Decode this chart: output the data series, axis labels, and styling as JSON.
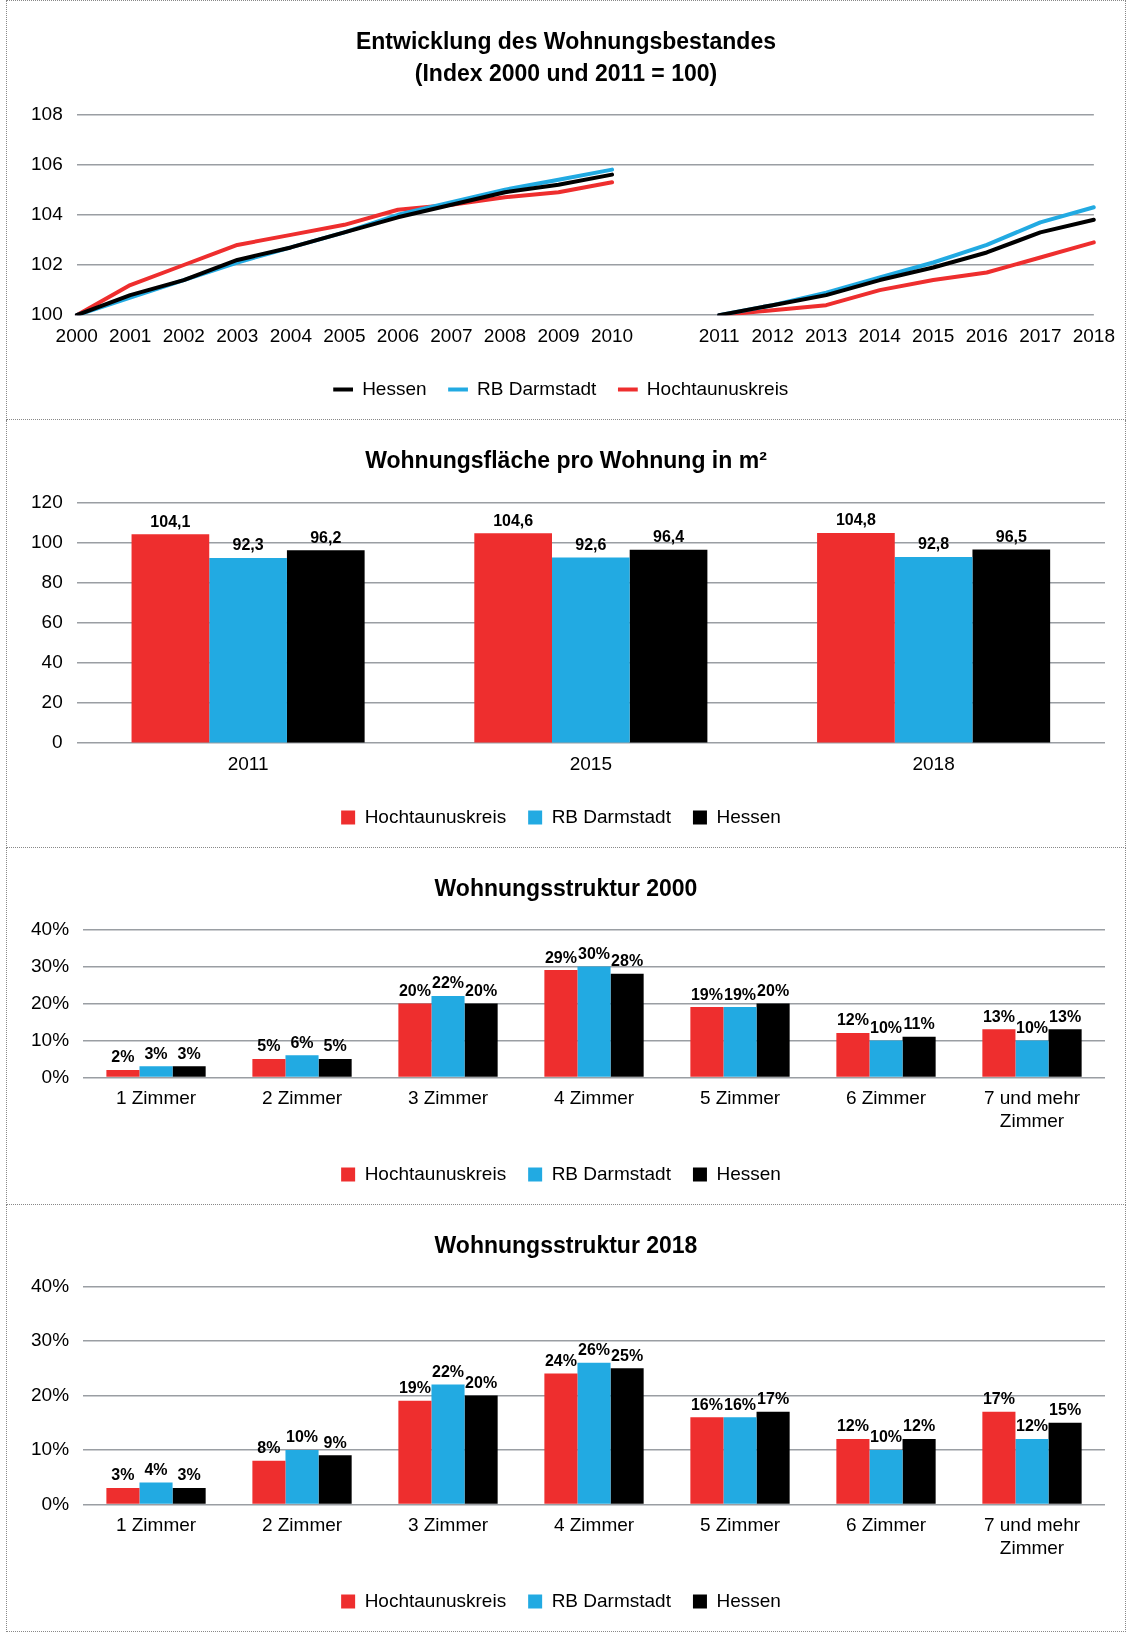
{
  "chart_data": [
    {
      "type": "line",
      "title": "Entwicklung des Wohnungsbestandes\n(Index 2000 und 2011 = 100)",
      "categories": [
        "2000",
        "2001",
        "2002",
        "2003",
        "2004",
        "2005",
        "2006",
        "2007",
        "2008",
        "2009",
        "2010",
        null,
        "2011",
        "2012",
        "2013",
        "2014",
        "2015",
        "2016",
        "2017",
        "2018"
      ],
      "series": [
        {
          "name": "Hochtaunuskreis",
          "color": "#ee2e2e",
          "values": [
            100,
            101.2,
            102.0,
            102.8,
            103.2,
            103.6,
            104.2,
            104.4,
            104.7,
            104.9,
            105.3,
            null,
            100,
            100.2,
            100.4,
            101.0,
            101.4,
            101.7,
            102.3,
            102.9
          ]
        },
        {
          "name": "RB Darmstadt",
          "color": "#22aae2",
          "values": [
            100,
            100.7,
            101.4,
            102.1,
            102.7,
            103.3,
            104.0,
            104.5,
            105.0,
            105.4,
            105.8,
            null,
            100,
            100.4,
            100.9,
            101.5,
            102.1,
            102.8,
            103.7,
            104.3
          ]
        },
        {
          "name": "Hessen",
          "color": "#000000",
          "values": [
            100,
            100.8,
            101.4,
            102.2,
            102.7,
            103.3,
            103.9,
            104.4,
            104.9,
            105.2,
            105.6,
            null,
            100,
            100.4,
            100.8,
            101.4,
            101.9,
            102.5,
            103.3,
            103.8
          ]
        }
      ],
      "ylim": [
        100,
        108
      ],
      "yticks": [
        100,
        102,
        104,
        106,
        108
      ],
      "grid": "y",
      "legend": "bottom",
      "marker": "none",
      "line_style": "solid"
    },
    {
      "type": "bar",
      "title": "Wohnungsfläche pro Wohnung in m²",
      "categories": [
        "2011",
        "2015",
        "2018"
      ],
      "series": [
        {
          "name": "Hochtaunuskreis",
          "color": "#ee2e2e",
          "values": [
            104.1,
            104.6,
            104.8
          ],
          "value_labels": [
            "104,1",
            "104,6",
            "104,8"
          ]
        },
        {
          "name": "RB Darmstadt",
          "color": "#22aae2",
          "values": [
            92.3,
            92.6,
            92.8
          ],
          "value_labels": [
            "92,3",
            "92,6",
            "92,8"
          ]
        },
        {
          "name": "Hessen",
          "color": "#000000",
          "values": [
            96.2,
            96.4,
            96.5
          ],
          "value_labels": [
            "96,2",
            "96,4",
            "96,5"
          ]
        }
      ],
      "ylim": [
        0,
        120
      ],
      "yticks": [
        0,
        20,
        40,
        60,
        80,
        100,
        120
      ],
      "grid": "y",
      "legend": "bottom"
    },
    {
      "type": "bar",
      "title": "Wohnungsstruktur 2000",
      "categories": [
        "1 Zimmer",
        "2 Zimmer",
        "3 Zimmer",
        "4 Zimmer",
        "5 Zimmer",
        "6 Zimmer",
        "7 und mehr Zimmer"
      ],
      "series": [
        {
          "name": "Hochtaunuskreis",
          "color": "#ee2e2e",
          "values": [
            2,
            5,
            20,
            29,
            19,
            12,
            13
          ],
          "value_labels": [
            "2%",
            "5%",
            "20%",
            "29%",
            "19%",
            "12%",
            "13%"
          ]
        },
        {
          "name": "RB Darmstadt",
          "color": "#22aae2",
          "values": [
            3,
            6,
            22,
            30,
            19,
            10,
            10
          ],
          "value_labels": [
            "3%",
            "6%",
            "22%",
            "30%",
            "19%",
            "10%",
            "10%"
          ]
        },
        {
          "name": "Hessen",
          "color": "#000000",
          "values": [
            3,
            5,
            20,
            28,
            20,
            11,
            13
          ],
          "value_labels": [
            "3%",
            "5%",
            "20%",
            "28%",
            "20%",
            "11%",
            "13%"
          ]
        }
      ],
      "ylim": [
        0,
        40
      ],
      "yticks": [
        {
          "value": 0,
          "label": "0%"
        },
        {
          "value": 10,
          "label": "10%"
        },
        {
          "value": 20,
          "label": "20%"
        },
        {
          "value": 30,
          "label": "30%"
        },
        {
          "value": 40,
          "label": "40%"
        }
      ],
      "grid": "y",
      "legend": "bottom"
    },
    {
      "type": "bar",
      "title": "Wohnungsstruktur 2018",
      "categories": [
        "1 Zimmer",
        "2 Zimmer",
        "3 Zimmer",
        "4 Zimmer",
        "5 Zimmer",
        "6 Zimmer",
        "7 und mehr Zimmer"
      ],
      "series": [
        {
          "name": "Hochtaunuskreis",
          "color": "#ee2e2e",
          "values": [
            3,
            8,
            19,
            24,
            16,
            12,
            17
          ],
          "value_labels": [
            "3%",
            "8%",
            "19%",
            "24%",
            "16%",
            "12%",
            "17%"
          ]
        },
        {
          "name": "RB Darmstadt",
          "color": "#22aae2",
          "values": [
            4,
            10,
            22,
            26,
            16,
            10,
            12
          ],
          "value_labels": [
            "4%",
            "10%",
            "22%",
            "26%",
            "16%",
            "10%",
            "12%"
          ]
        },
        {
          "name": "Hessen",
          "color": "#000000",
          "values": [
            3,
            9,
            20,
            25,
            17,
            12,
            15
          ],
          "value_labels": [
            "3%",
            "9%",
            "20%",
            "25%",
            "17%",
            "12%",
            "15%"
          ]
        }
      ],
      "ylim": [
        0,
        40
      ],
      "yticks": [
        {
          "value": 0,
          "label": "0%"
        },
        {
          "value": 10,
          "label": "10%"
        },
        {
          "value": 20,
          "label": "20%"
        },
        {
          "value": 30,
          "label": "30%"
        },
        {
          "value": 40,
          "label": "40%"
        }
      ],
      "grid": "y",
      "legend": "bottom"
    }
  ]
}
